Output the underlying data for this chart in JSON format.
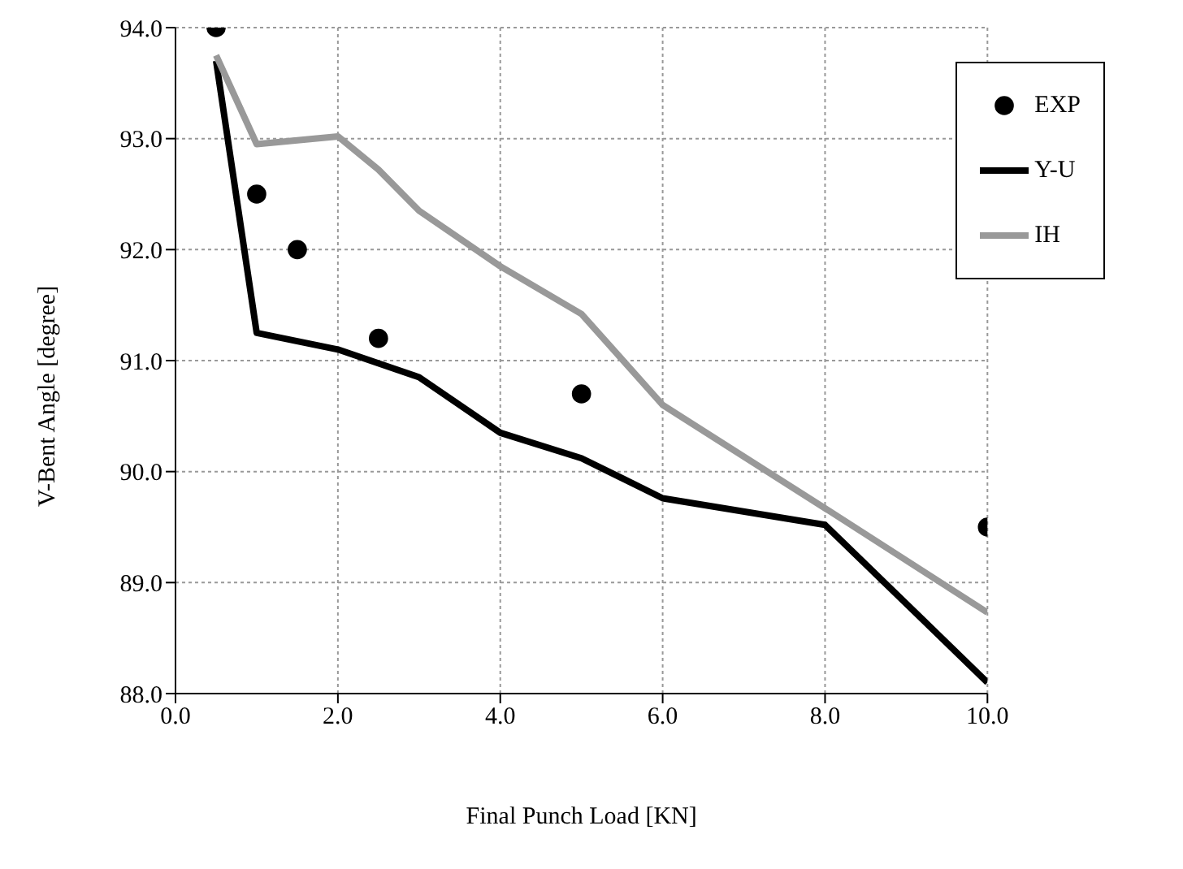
{
  "chart_data": {
    "type": "line",
    "xlabel": "Final Punch Load [KN]",
    "ylabel": "V-Bent Angle [degree]",
    "xlim": [
      0,
      10
    ],
    "ylim": [
      88,
      94
    ],
    "xticks": [
      {
        "value": 0,
        "label": "0.0"
      },
      {
        "value": 2,
        "label": "2.0"
      },
      {
        "value": 4,
        "label": "4.0"
      },
      {
        "value": 6,
        "label": "6.0"
      },
      {
        "value": 8,
        "label": "8.0"
      },
      {
        "value": 10,
        "label": "10.0"
      }
    ],
    "yticks": [
      {
        "value": 88,
        "label": "88.0"
      },
      {
        "value": 89,
        "label": "89.0"
      },
      {
        "value": 90,
        "label": "90.0"
      },
      {
        "value": 91,
        "label": "91.0"
      },
      {
        "value": 92,
        "label": "92.0"
      },
      {
        "value": 93,
        "label": "93.0"
      },
      {
        "value": 94,
        "label": "94.0"
      }
    ],
    "grid": true,
    "legend": "top right",
    "series": [
      {
        "name": "EXP",
        "type": "scatter",
        "marker": "circle",
        "color": "#000000",
        "x": [
          0.5,
          1.0,
          1.5,
          2.5,
          5.0,
          10.0
        ],
        "values": [
          94.0,
          92.5,
          92.0,
          91.2,
          90.7,
          89.5
        ]
      },
      {
        "name": "Y-U",
        "color": "#000000",
        "x": [
          0.5,
          1.0,
          2.0,
          3.0,
          4.0,
          5.0,
          6.0,
          8.0,
          10.0
        ],
        "values": [
          93.7,
          91.25,
          91.1,
          90.85,
          90.35,
          90.12,
          89.76,
          89.52,
          88.1
        ]
      },
      {
        "name": "IH",
        "color": "#999999",
        "x": [
          0.5,
          1.0,
          2.0,
          2.5,
          3.0,
          4.0,
          5.0,
          6.0,
          8.0,
          10.0
        ],
        "values": [
          93.75,
          92.95,
          93.02,
          92.72,
          92.35,
          91.85,
          91.42,
          90.6,
          89.67,
          88.73
        ]
      }
    ]
  }
}
